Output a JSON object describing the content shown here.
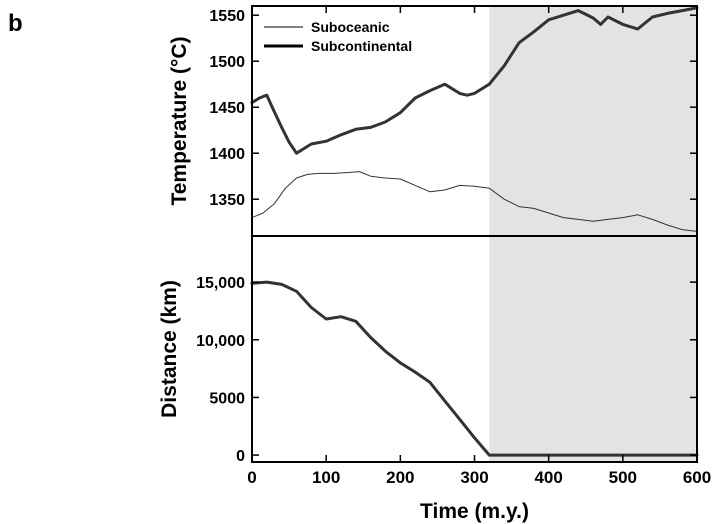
{
  "panel_label": "b",
  "chart_data": [
    {
      "type": "line",
      "title": "",
      "xlabel": "",
      "ylabel": "Temperature (°C)",
      "xlim": [
        0,
        600
      ],
      "ylim": [
        1310,
        1560
      ],
      "yticks": [
        1350,
        1400,
        1450,
        1500,
        1550
      ],
      "ytick_labels": [
        "1350",
        "1400",
        "1450",
        "1500",
        "1550"
      ],
      "shaded_region_x": [
        320,
        600
      ],
      "legend": {
        "placement": "top-left"
      },
      "series": [
        {
          "name": "Suboceanic",
          "style": "thin",
          "x": [
            0,
            15,
            30,
            45,
            60,
            75,
            90,
            110,
            130,
            145,
            160,
            180,
            200,
            220,
            240,
            260,
            280,
            300,
            320,
            340,
            360,
            380,
            400,
            420,
            440,
            460,
            480,
            500,
            520,
            540,
            560,
            580,
            600
          ],
          "y": [
            1330,
            1335,
            1345,
            1362,
            1373,
            1377,
            1378,
            1378,
            1379,
            1380,
            1375,
            1373,
            1372,
            1365,
            1358,
            1360,
            1365,
            1364,
            1362,
            1350,
            1342,
            1340,
            1335,
            1330,
            1328,
            1326,
            1328,
            1330,
            1333,
            1328,
            1322,
            1317,
            1315
          ]
        },
        {
          "name": "Subcontinental",
          "style": "thick",
          "x": [
            0,
            10,
            20,
            30,
            40,
            50,
            60,
            70,
            80,
            100,
            120,
            140,
            160,
            180,
            200,
            220,
            240,
            260,
            270,
            280,
            290,
            300,
            320,
            340,
            360,
            380,
            400,
            420,
            440,
            460,
            470,
            480,
            500,
            520,
            540,
            560,
            580,
            600
          ],
          "y": [
            1455,
            1460,
            1463,
            1445,
            1428,
            1412,
            1400,
            1405,
            1410,
            1413,
            1420,
            1426,
            1428,
            1434,
            1444,
            1460,
            1468,
            1475,
            1470,
            1465,
            1463,
            1465,
            1475,
            1495,
            1520,
            1532,
            1545,
            1550,
            1555,
            1547,
            1540,
            1548,
            1540,
            1535,
            1548,
            1552,
            1555,
            1558
          ]
        }
      ]
    },
    {
      "type": "line",
      "title": "",
      "xlabel": "Time (m.y.)",
      "ylabel": "Distance (km)",
      "xlim": [
        0,
        600
      ],
      "ylim": [
        -600,
        19000
      ],
      "xticks": [
        0,
        100,
        200,
        300,
        400,
        500,
        600
      ],
      "xtick_labels": [
        "0",
        "100",
        "200",
        "300",
        "400",
        "500",
        "600"
      ],
      "yticks": [
        0,
        5000,
        10000,
        15000
      ],
      "ytick_labels": [
        "0",
        "5000",
        "10,000",
        "15,000"
      ],
      "shaded_region_x": [
        320,
        600
      ],
      "series": [
        {
          "style": "thick",
          "x": [
            0,
            20,
            40,
            60,
            80,
            100,
            120,
            140,
            160,
            180,
            200,
            220,
            240,
            260,
            280,
            300,
            320,
            400,
            500,
            600
          ],
          "y": [
            14900,
            15000,
            14800,
            14200,
            12800,
            11800,
            12000,
            11600,
            10200,
            9000,
            8000,
            7200,
            6300,
            4700,
            3100,
            1500,
            0,
            0,
            0,
            0
          ]
        }
      ]
    }
  ]
}
